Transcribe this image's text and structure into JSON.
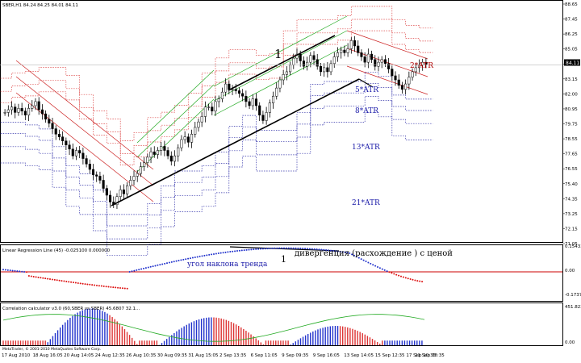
{
  "header": {
    "main_title": "SBER,H1  84.24 84.25 84.01 84.11",
    "lr_title": "Linear Regression Line (45) -0.025100 0.000000",
    "corr_title": "Correlation calculator v3.0 (60,SBER vs SBER) 45.6807 32.1..."
  },
  "annotations": {
    "wave_label": "1",
    "atr5": "5*ATR",
    "atr8": "8*ATR",
    "atr13": "13*ATR",
    "atr21": "21*ATR",
    "atr_top": "2*ATR",
    "trend_angle": "угол наклона тренда",
    "divergence": "дивергенция (расхождение ) с ценой",
    "osc_label": "1",
    "copyright": "MetaTrader, © 2001-2010 MetaQuotes Software Corp."
  },
  "price_axis": [
    "88.65",
    "87.45",
    "86.25",
    "85.05",
    "84.11",
    "83.15",
    "82.00",
    "80.95",
    "79.75",
    "78.55",
    "77.65",
    "76.55",
    "75.40",
    "74.35",
    "73.25",
    "72.15",
    "71.05"
  ],
  "lr_axis": [
    "0.154339",
    "0.00",
    "-0.173744"
  ],
  "corr_axis": [
    "451.8226",
    "0.00"
  ],
  "time_axis": [
    "17 Aug 2010",
    "18 Aug 16:05",
    "20 Aug 14:05",
    "24 Aug 12:35",
    "26 Aug 10:35",
    "30 Aug 09:35",
    "31 Aug 15:05",
    "2 Sep 13:35",
    "6 Sep 11:05",
    "9 Sep 09:35",
    "9 Sep 16:05",
    "13 Sep 14:05",
    "15 Sep 12:35",
    "17 Sep 10:35",
    "21 Sep 08:35"
  ],
  "price_tag": "84.11",
  "chart_data": {
    "type": "candlestick",
    "symbol": "SBER",
    "timeframe": "H1",
    "ohlc_header": [
      84.24,
      84.25,
      84.01,
      84.11
    ],
    "last_price": 84.11,
    "ylim": [
      71.05,
      88.65
    ],
    "close": [
      80.6,
      80.8,
      81.0,
      80.6,
      80.9,
      80.7,
      80.4,
      80.9,
      81.1,
      81.4,
      80.8,
      80.5,
      80.1,
      79.8,
      79.4,
      79.0,
      78.8,
      78.5,
      78.2,
      77.9,
      77.4,
      77.8,
      77.6,
      77.2,
      76.8,
      76.4,
      76.0,
      75.9,
      75.6,
      75.0,
      74.5,
      74.0,
      73.8,
      74.4,
      74.9,
      74.6,
      75.2,
      75.6,
      75.9,
      76.1,
      76.6,
      76.9,
      77.3,
      77.7,
      77.5,
      77.8,
      78.1,
      77.8,
      77.4,
      77.0,
      77.4,
      78.0,
      78.6,
      78.8,
      78.4,
      79.0,
      79.5,
      79.9,
      80.3,
      81.0,
      81.0,
      80.7,
      81.4,
      81.6,
      82.1,
      82.7,
      82.3,
      82.3,
      82.2,
      82.0,
      81.8,
      81.4,
      81.1,
      81.6,
      81.1,
      80.4,
      80.0,
      80.6,
      81.3,
      81.8,
      82.4,
      83.0,
      83.4,
      83.6,
      84.1,
      84.6,
      84.9,
      84.4,
      84.0,
      84.3,
      84.8,
      84.5,
      84.0,
      83.6,
      83.9,
      83.6,
      84.2,
      84.7,
      85.0,
      85.2,
      85.0,
      85.3,
      85.9,
      85.5,
      85.0,
      84.7,
      84.3,
      84.9,
      84.5,
      84.0,
      84.3,
      84.5,
      84.2,
      83.8,
      83.3,
      83.0,
      82.6,
      82.3,
      82.7,
      83.2,
      83.6,
      83.9,
      84.1,
      84.3,
      84.11
    ],
    "atr_bands": [
      "2*ATR",
      "5*ATR",
      "8*ATR",
      "13*ATR",
      "21*ATR"
    ],
    "oscillator": {
      "name": "Linear Regression Line (45)",
      "values": [
        -0.0251,
        0.0
      ],
      "ylim": [
        -0.173744,
        0.154339
      ]
    },
    "correlation": {
      "name": "Correlation calculator v3.0",
      "params": "60,SBER vs SBER",
      "values": [
        45.6807,
        32.1
      ],
      "ylim": [
        0,
        451.8226
      ]
    },
    "x_ticks": [
      "17 Aug 2010",
      "18 Aug 16:05",
      "20 Aug 14:05",
      "24 Aug 12:35",
      "26 Aug 10:35",
      "30 Aug 09:35",
      "31 Aug 15:05",
      "2 Sep 13:35",
      "6 Sep 11:05",
      "9 Sep 09:35",
      "9 Sep 16:05",
      "13 Sep 14:05",
      "15 Sep 12:35",
      "17 Sep 10:35",
      "21 Sep 08:35"
    ]
  }
}
